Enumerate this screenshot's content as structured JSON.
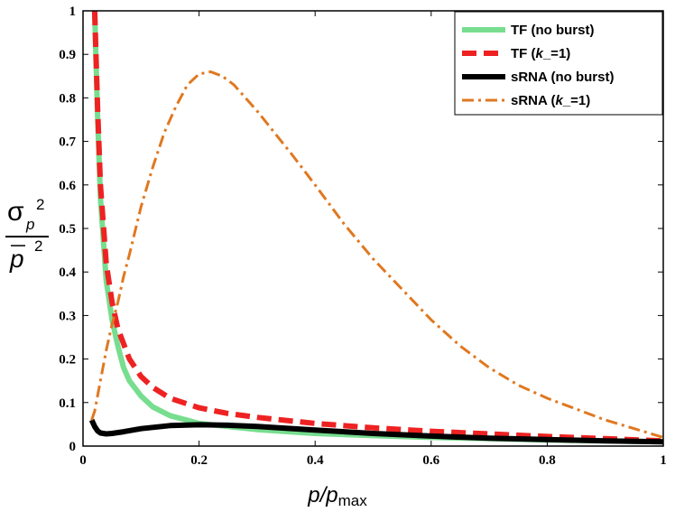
{
  "chart_data": {
    "type": "line",
    "title": "",
    "xlabel": {
      "main": "p/p",
      "sub": "max"
    },
    "ylabel": {
      "sigma": "σ",
      "sub": "p",
      "sup": "2",
      "mean": "p",
      "mean_sup": "2"
    },
    "xlim": [
      0,
      1
    ],
    "ylim": [
      0,
      1
    ],
    "x_ticks": [
      "0",
      "0.2",
      "0.4",
      "0.6",
      "0.8",
      "1"
    ],
    "y_ticks": [
      "0",
      "0.1",
      "0.2",
      "0.3",
      "0.4",
      "0.5",
      "0.6",
      "0.7",
      "0.8",
      "0.9",
      "1"
    ],
    "grid": false,
    "legend_position": "top-right",
    "series": [
      {
        "name": "TF (no burst)",
        "legend_parts": [
          "TF (no burst)"
        ],
        "color": "#77dd8f",
        "style": "solid-thick",
        "x": [
          0.02,
          0.025,
          0.03,
          0.04,
          0.05,
          0.06,
          0.07,
          0.08,
          0.1,
          0.12,
          0.15,
          0.2,
          0.25,
          0.3,
          0.4,
          0.5,
          0.6,
          0.7,
          0.8,
          0.9,
          1.0
        ],
        "y": [
          1.0,
          0.76,
          0.57,
          0.38,
          0.29,
          0.23,
          0.18,
          0.15,
          0.115,
          0.09,
          0.07,
          0.052,
          0.045,
          0.038,
          0.029,
          0.024,
          0.02,
          0.017,
          0.014,
          0.012,
          0.01
        ]
      },
      {
        "name": "TF (k_=1)",
        "legend_parts": [
          "TF (",
          "k",
          "_=1)"
        ],
        "color": "#ee2222",
        "style": "dashed-thick",
        "x": [
          0.02,
          0.025,
          0.03,
          0.04,
          0.05,
          0.06,
          0.08,
          0.1,
          0.12,
          0.15,
          0.2,
          0.25,
          0.3,
          0.4,
          0.5,
          0.6,
          0.7,
          0.8,
          0.9,
          1.0
        ],
        "y": [
          1.0,
          0.78,
          0.6,
          0.42,
          0.33,
          0.27,
          0.2,
          0.16,
          0.135,
          0.11,
          0.088,
          0.075,
          0.066,
          0.052,
          0.042,
          0.034,
          0.028,
          0.022,
          0.017,
          0.012
        ]
      },
      {
        "name": "sRNA (no burst)",
        "legend_parts": [
          "sRNA (no burst)"
        ],
        "color": "#000000",
        "style": "solid-thick",
        "x": [
          0.015,
          0.02,
          0.025,
          0.03,
          0.04,
          0.05,
          0.07,
          0.1,
          0.15,
          0.2,
          0.25,
          0.3,
          0.4,
          0.5,
          0.6,
          0.7,
          0.8,
          0.9,
          1.0
        ],
        "y": [
          0.06,
          0.045,
          0.035,
          0.03,
          0.028,
          0.029,
          0.033,
          0.04,
          0.047,
          0.049,
          0.048,
          0.045,
          0.037,
          0.029,
          0.023,
          0.018,
          0.015,
          0.012,
          0.01
        ]
      },
      {
        "name": "sRNA (k_=1)",
        "legend_parts": [
          "sRNA (",
          "k",
          "_=1)"
        ],
        "color": "#e07820",
        "style": "dashdot",
        "x": [
          0.015,
          0.02,
          0.03,
          0.04,
          0.05,
          0.06,
          0.07,
          0.08,
          0.1,
          0.12,
          0.14,
          0.16,
          0.18,
          0.2,
          0.22,
          0.24,
          0.26,
          0.28,
          0.3,
          0.33,
          0.36,
          0.4,
          0.45,
          0.5,
          0.55,
          0.6,
          0.65,
          0.7,
          0.75,
          0.8,
          0.85,
          0.9,
          0.95,
          1.0
        ],
        "y": [
          0.06,
          0.08,
          0.15,
          0.22,
          0.28,
          0.33,
          0.39,
          0.44,
          0.55,
          0.64,
          0.72,
          0.78,
          0.83,
          0.855,
          0.86,
          0.85,
          0.83,
          0.8,
          0.77,
          0.72,
          0.67,
          0.6,
          0.51,
          0.43,
          0.36,
          0.29,
          0.23,
          0.18,
          0.14,
          0.11,
          0.085,
          0.06,
          0.04,
          0.02
        ]
      }
    ]
  }
}
